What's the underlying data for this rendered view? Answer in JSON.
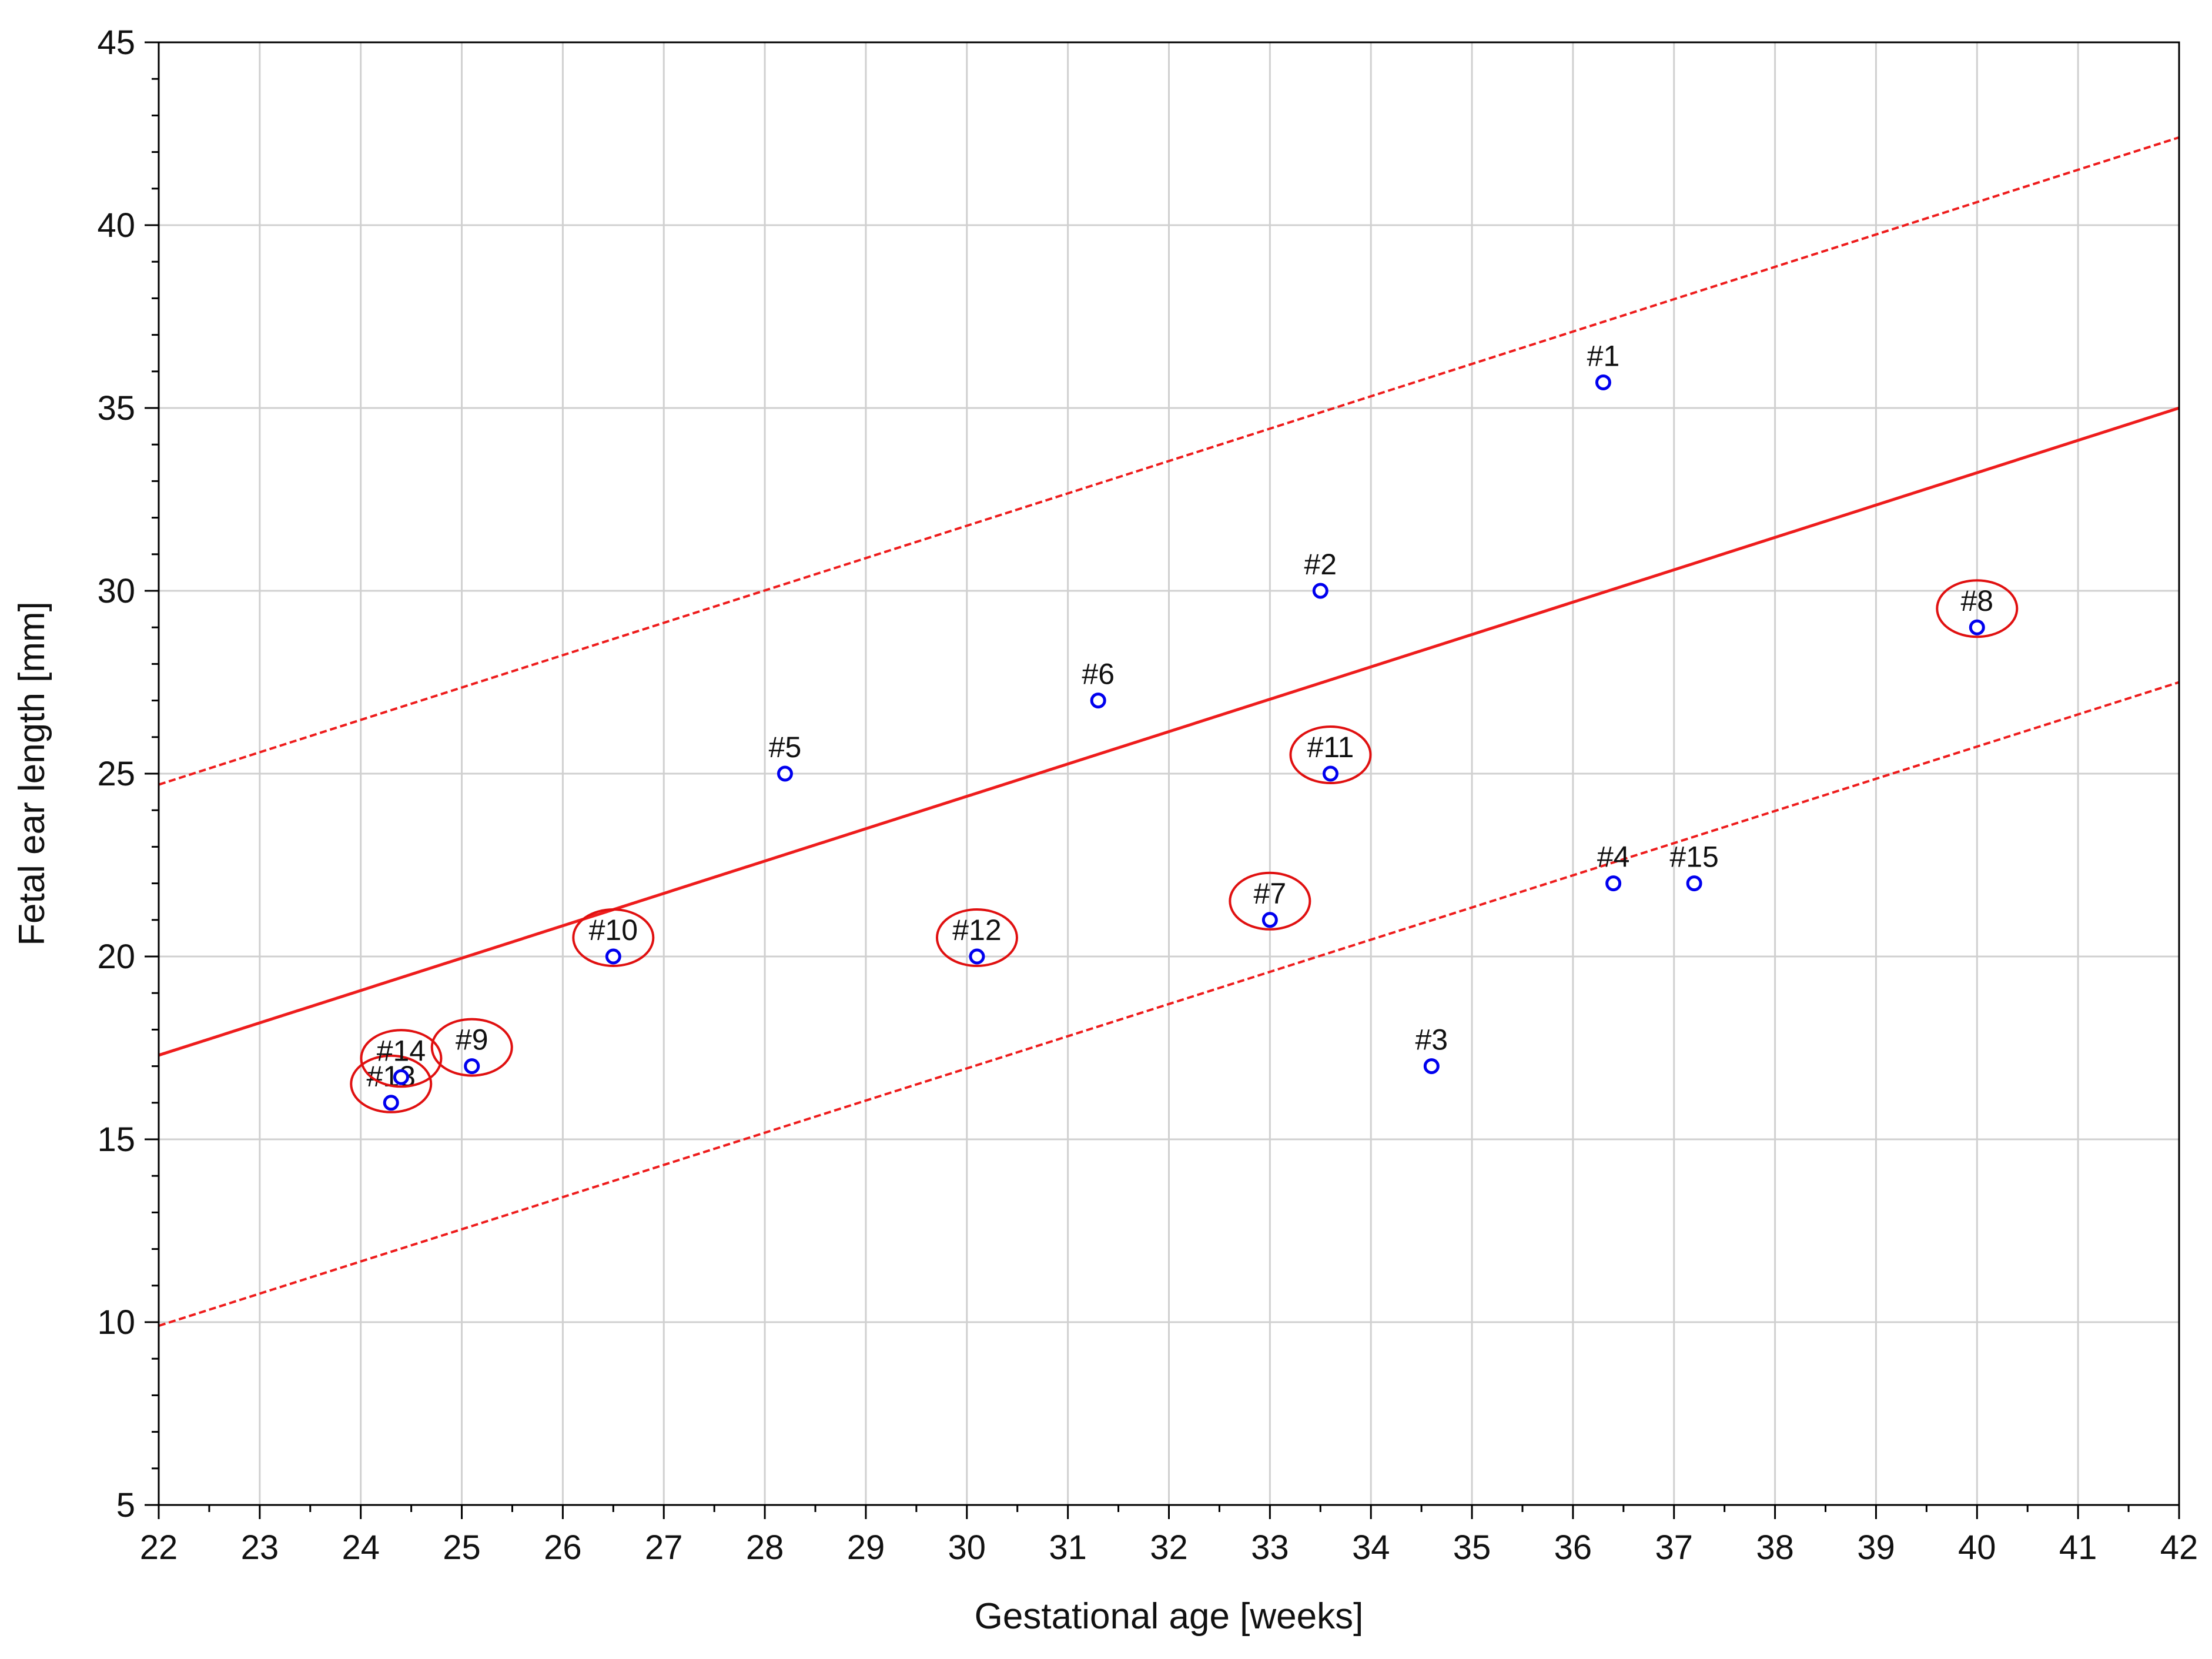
{
  "chart_data": {
    "type": "scatter",
    "title": "",
    "xlabel": "Gestational age [weeks]",
    "ylabel": "Fetal ear length [mm]",
    "xlim": [
      22,
      42
    ],
    "ylim": [
      5,
      45
    ],
    "xticks": [
      "22",
      "23",
      "24",
      "25",
      "26",
      "27",
      "28",
      "29",
      "30",
      "31",
      "32",
      "33",
      "34",
      "35",
      "36",
      "37",
      "38",
      "39",
      "40",
      "41",
      "42"
    ],
    "yticks": [
      "5",
      "10",
      "15",
      "20",
      "25",
      "30",
      "35",
      "40",
      "45"
    ],
    "grid": true,
    "points": [
      {
        "label": "#1",
        "x": 36.3,
        "y": 35.7,
        "highlighted": false
      },
      {
        "label": "#2",
        "x": 33.5,
        "y": 30.0,
        "highlighted": false
      },
      {
        "label": "#3",
        "x": 34.6,
        "y": 17.0,
        "highlighted": false
      },
      {
        "label": "#4",
        "x": 36.4,
        "y": 22.0,
        "highlighted": false
      },
      {
        "label": "#5",
        "x": 28.2,
        "y": 25.0,
        "highlighted": false
      },
      {
        "label": "#6",
        "x": 31.3,
        "y": 27.0,
        "highlighted": false
      },
      {
        "label": "#7",
        "x": 33.0,
        "y": 21.0,
        "highlighted": true
      },
      {
        "label": "#8",
        "x": 40.0,
        "y": 29.0,
        "highlighted": true
      },
      {
        "label": "#9",
        "x": 25.1,
        "y": 17.0,
        "highlighted": true
      },
      {
        "label": "#10",
        "x": 26.5,
        "y": 20.0,
        "highlighted": true
      },
      {
        "label": "#11",
        "x": 33.6,
        "y": 25.0,
        "highlighted": true
      },
      {
        "label": "#12",
        "x": 30.1,
        "y": 20.0,
        "highlighted": true
      },
      {
        "label": "#13",
        "x": 24.3,
        "y": 16.0,
        "highlighted": true
      },
      {
        "label": "#14",
        "x": 24.4,
        "y": 16.7,
        "highlighted": true
      },
      {
        "label": "#15",
        "x": 37.2,
        "y": 22.0,
        "highlighted": false
      }
    ],
    "regression": {
      "fit": {
        "x": [
          22,
          42
        ],
        "y": [
          17.3,
          35.0
        ]
      },
      "upper": {
        "x": [
          22,
          42
        ],
        "y": [
          24.7,
          42.4
        ]
      },
      "lower": {
        "x": [
          22,
          42
        ],
        "y": [
          9.9,
          27.5
        ]
      }
    },
    "colors": {
      "points": "#0000ee",
      "regression": "#ee1c1c",
      "highlight": "#e01010",
      "grid": "#d0d0d0",
      "axis": "#000000"
    }
  }
}
